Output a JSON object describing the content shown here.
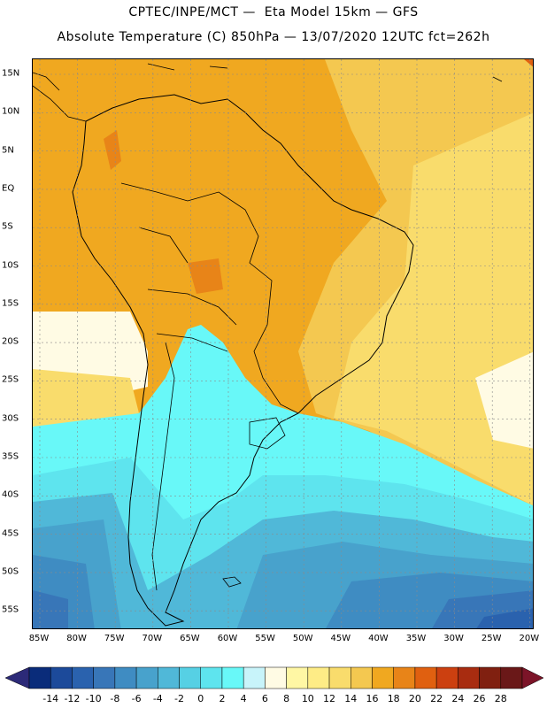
{
  "header": {
    "line1": "CPTEC/INPE/MCT —  Eta Model 15km — GFS",
    "line2": "Absolute Temperature (C) 850hPa — 13/07/2020 12UTC fct=262h"
  },
  "lat_labels": [
    "15N",
    "10N",
    "5N",
    "EQ",
    "5S",
    "10S",
    "15S",
    "20S",
    "25S",
    "30S",
    "35S",
    "40S",
    "45S",
    "50S",
    "55S"
  ],
  "lon_labels": [
    "85W",
    "80W",
    "75W",
    "70W",
    "65W",
    "60W",
    "55W",
    "50W",
    "45W",
    "40W",
    "35W",
    "30W",
    "25W",
    "20W"
  ],
  "colorbar": {
    "labels": [
      "-14",
      "-12",
      "-10",
      "-8",
      "-6",
      "-4",
      "-2",
      "0",
      "2",
      "4",
      "6",
      "8",
      "10",
      "12",
      "14",
      "16",
      "18",
      "20",
      "22",
      "24",
      "26",
      "28"
    ],
    "colors": [
      "#0a2c7a",
      "#1c4a9a",
      "#2a62ae",
      "#3876b8",
      "#3f8cc2",
      "#48a2cc",
      "#50b8d8",
      "#56d0e4",
      "#5ee4ee",
      "#68f8f8",
      "#c8f4fa",
      "#fffbe4",
      "#fff7a4",
      "#feec86",
      "#f9dc6c",
      "#f4c850",
      "#f0a820",
      "#e88418",
      "#e06010",
      "#cc4010",
      "#a82c10",
      "#802010",
      "#6a1818"
    ],
    "left_arrow": "#2c2a78",
    "right_arrow": "#7c1428"
  },
  "map": {
    "fill_colors": {
      "warm_20_22": "#f0a820",
      "warm_18_20": "#f4c850",
      "warm_16_18": "#f9dc6c",
      "pale_8_10": "#fffbe4",
      "cyan_4_6": "#68f8f8",
      "cyan_2_4": "#5ee4ee",
      "blue_0_2": "#50b8d8",
      "blue_m2_0": "#48a2cc",
      "blue_m4": "#3f8cc2",
      "blue_m6": "#3876b8",
      "blue_m8": "#2a62ae",
      "hot_24": "#e06010"
    },
    "grid_color": "#8a8a8a",
    "coast_color": "#000000"
  }
}
